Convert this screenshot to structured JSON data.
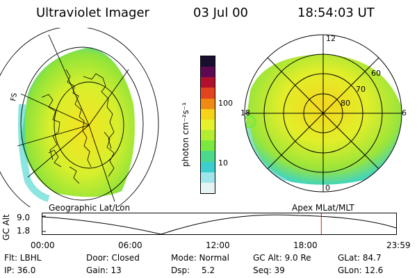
{
  "header": {
    "title": "Ultraviolet Imager",
    "date": "03 Jul 00",
    "time": "18:54:03 UT"
  },
  "colorbar": {
    "unit_label": "photon cm⁻²s⁻¹",
    "ticks": [
      "100",
      "10"
    ],
    "colors": [
      "#1a0f2e",
      "#5e0a52",
      "#b0102c",
      "#e2451e",
      "#f08a12",
      "#f6d21b",
      "#e5f12b",
      "#b4ee32",
      "#7be83f",
      "#4dd98c",
      "#3dcfcf",
      "#9fe6ea",
      "#e6f3f5"
    ]
  },
  "geo_panel": {
    "label": "Geographic Lat/Lon",
    "edge_label": "FS"
  },
  "apex_panel": {
    "label": "Apex MLat/MLT",
    "mlt_labels": {
      "top": "12",
      "left": "18",
      "right": "6",
      "bottom": "0"
    },
    "lat_labels": [
      "60",
      "70",
      "80"
    ]
  },
  "altitude_plot": {
    "ylabel": "GC Alt",
    "yticks": [
      "9.0",
      "1.8"
    ],
    "xticks": [
      "00:00",
      "06:00",
      "12:00",
      "18:00",
      "23:59"
    ],
    "current_time_fraction": 0.79,
    "marker_color": "#cc2200"
  },
  "info": {
    "flt": "Flt: LBHL",
    "door": "Door: Closed",
    "mode": "Mode: Normal",
    "gc_alt": "GC Alt: 9.0 Re",
    "glat": "GLat: 84.7",
    "ip": "IP: 36.0",
    "gain": "Gain: 13",
    "dsp_label": "Dsp:",
    "dsp_value": "5.2",
    "seq": "Seq: 39",
    "glon": "GLon: 12.6"
  }
}
